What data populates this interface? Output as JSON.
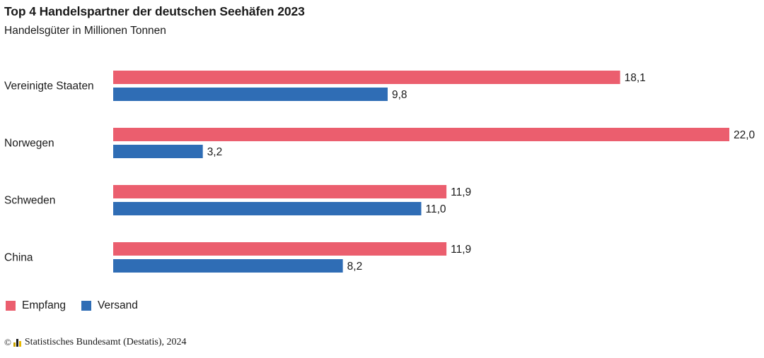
{
  "header": {
    "title": "Top 4 Handelspartner der deutschen Seehäfen 2023",
    "subtitle": "Handelsgüter in Millionen Tonnen"
  },
  "chart_data": {
    "type": "bar",
    "orientation": "horizontal",
    "title": "Top 4 Handelspartner der deutschen Seehäfen 2023",
    "subtitle": "Handelsgüter in Millionen Tonnen",
    "categories": [
      "Vereinigte Staaten",
      "Norwegen",
      "Schweden",
      "China"
    ],
    "series": [
      {
        "name": "Empfang",
        "color": "#eb5e6e",
        "values": [
          18.1,
          22.0,
          11.9,
          11.9
        ]
      },
      {
        "name": "Versand",
        "color": "#2f6db5",
        "values": [
          9.8,
          3.2,
          11.0,
          8.2
        ]
      }
    ],
    "xlim": [
      0,
      22.0
    ],
    "grid": false,
    "axes_visible": false,
    "legend_position": "bottom-left",
    "value_labels": true,
    "decimal_separator": ","
  },
  "legend": {
    "items": [
      {
        "label": "Empfang",
        "color": "#eb5e6e"
      },
      {
        "label": "Versand",
        "color": "#2f6db5"
      }
    ]
  },
  "footer": {
    "copyright": "©",
    "source": "Statistisches Bundesamt (Destatis), 2024",
    "logo_icon": "destatis-logo-icon",
    "logo_colors": [
      "#c8a200",
      "#1a1a1a",
      "#e8b800"
    ]
  }
}
